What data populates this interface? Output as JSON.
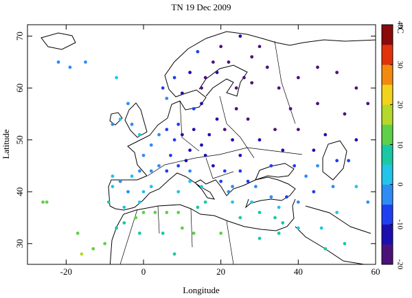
{
  "chart_data": {
    "type": "scatter",
    "title": "TN 19 Dec 2009",
    "x_label": "Longitude",
    "y_label": "Latitude",
    "xlim": [
      -30,
      60
    ],
    "ylim": [
      26,
      72.2
    ],
    "xticks": [
      -20,
      0,
      20,
      40,
      60
    ],
    "yticks": [
      30,
      40,
      50,
      60,
      70
    ],
    "colorbar_label": "°C",
    "clim": [
      -20,
      40
    ],
    "cticks": [
      -20,
      -10,
      0,
      10,
      20,
      30,
      40
    ],
    "colormap": [
      "#4b137a",
      "#1c0fb0",
      "#1f3ff0",
      "#2f8cf5",
      "#22c4e8",
      "#19c9a5",
      "#5fd04a",
      "#b5d82b",
      "#f2d31c",
      "#f28a10",
      "#e0330c",
      "#8b0a0a"
    ],
    "x": [
      5,
      10,
      15,
      18,
      20,
      25,
      14,
      12,
      16,
      19,
      22,
      26,
      28,
      30,
      24,
      28,
      8,
      6,
      15,
      13,
      32,
      35,
      40,
      45,
      50,
      55,
      38,
      45,
      52,
      58,
      34,
      40,
      47,
      55,
      36,
      44,
      50,
      24,
      27,
      21,
      17,
      19,
      23,
      30,
      25,
      13,
      10,
      8,
      12,
      15,
      16,
      11,
      7,
      9,
      6,
      4,
      2,
      -1,
      -3,
      -6,
      -8,
      -4,
      0,
      4,
      2,
      -1,
      6,
      18,
      21,
      25,
      27,
      20,
      23,
      9,
      12,
      12,
      15,
      16,
      14,
      9,
      -4,
      -6,
      -8,
      -9,
      -5,
      -1,
      0,
      2,
      -3,
      -8,
      -7,
      -5,
      -2,
      0,
      3,
      6,
      9,
      10,
      13,
      20,
      -10,
      -16,
      -13,
      -1,
      5,
      8,
      23,
      25,
      22,
      29,
      33,
      37,
      28,
      30,
      35,
      40,
      44,
      34,
      35,
      36,
      30,
      40,
      46,
      50,
      52,
      47,
      42,
      49,
      55,
      58,
      53,
      45,
      39,
      33,
      -26,
      -17,
      -22,
      -19,
      -15,
      -7,
      -25
    ],
    "y": [
      60,
      59,
      60,
      65,
      68,
      70,
      67,
      63,
      62,
      63,
      65,
      62,
      66,
      68,
      60,
      61,
      62,
      58,
      57,
      56,
      64,
      60,
      62,
      64,
      63,
      60,
      56,
      57,
      55,
      57,
      52,
      52,
      51,
      50,
      48,
      48,
      46,
      56,
      54,
      52,
      51,
      54,
      50,
      50,
      47,
      52,
      51,
      50,
      48,
      49,
      47,
      46,
      47,
      53,
      52,
      51,
      49,
      51,
      53,
      54,
      53,
      57,
      47,
      45,
      44,
      44,
      44,
      45,
      44,
      44,
      42,
      42,
      41,
      45,
      44,
      42,
      41,
      38,
      37,
      40,
      40,
      42,
      41,
      38,
      37,
      38,
      40,
      41,
      43,
      43,
      33,
      34,
      35,
      36,
      36,
      36,
      36,
      33,
      32,
      32,
      30,
      28,
      29,
      32,
      32,
      28,
      38,
      35,
      40,
      41,
      39,
      39,
      38,
      36,
      37,
      38,
      40,
      35,
      32,
      34,
      31,
      33,
      33,
      36,
      30,
      29,
      43,
      41,
      41,
      38,
      46,
      45,
      45,
      45,
      38,
      32,
      65,
      64,
      65,
      62,
      38
    ],
    "values": [
      -6,
      -12,
      -16,
      -18,
      -17,
      -12,
      -10,
      -14,
      -17,
      -15,
      -18,
      -19,
      -19,
      -16,
      -16,
      -18,
      -9,
      -5,
      -12,
      -9,
      -19,
      -19,
      -20,
      -20,
      -19,
      -19,
      -18,
      -19,
      -17,
      -18,
      -16,
      -16,
      -14,
      -12,
      -14,
      -12,
      -8,
      -18,
      -17,
      -16,
      -14,
      -15,
      -15,
      -15,
      -12,
      -13,
      -12,
      -9,
      -12,
      -13,
      -13,
      -11,
      -8,
      -10,
      -7,
      -4,
      -3,
      0,
      -2,
      0,
      -1,
      -4,
      -4,
      -5,
      -3,
      -1,
      -6,
      -12,
      -10,
      -9,
      -6,
      -6,
      -3,
      -6,
      -3,
      0,
      2,
      6,
      8,
      4,
      -2,
      -3,
      2,
      6,
      4,
      3,
      1,
      2,
      0,
      3,
      8,
      9,
      10,
      12,
      12,
      10,
      11,
      10,
      12,
      11,
      13,
      15,
      13,
      8,
      6,
      9,
      2,
      7,
      -2,
      -1,
      -4,
      -6,
      1,
      5,
      4,
      -5,
      -7,
      8,
      8,
      6,
      9,
      4,
      3,
      0,
      6,
      9,
      -3,
      -2,
      0,
      -2,
      -6,
      -5,
      -7,
      -6,
      12,
      14,
      -4,
      -2,
      -5,
      0,
      13
    ]
  }
}
